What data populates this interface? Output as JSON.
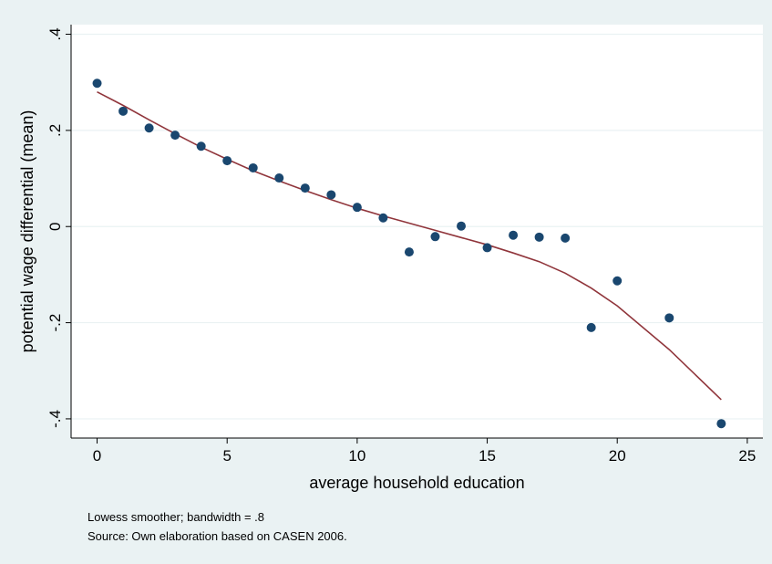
{
  "chart_data": {
    "type": "scatter",
    "xlabel": "average household education",
    "ylabel": "potential wage differential (mean)",
    "xlim": [
      -1,
      25.6
    ],
    "ylim": [
      -0.44,
      0.42
    ],
    "xticks": [
      0,
      5,
      10,
      15,
      20,
      25
    ],
    "xtick_labels": [
      "0",
      "5",
      "10",
      "15",
      "20",
      "25"
    ],
    "yticks": [
      -0.4,
      -0.2,
      0,
      0.2,
      0.4
    ],
    "ytick_labels": [
      "-.4",
      "-.2",
      "0",
      ".2",
      ".4"
    ],
    "grid": true,
    "legend": "none",
    "notes": [
      "Lowess smoother; bandwidth = .8",
      "Source: Own elaboration based on CASEN 2006."
    ],
    "colors": {
      "background": "#eaf2f3",
      "plot_area": "#ffffff",
      "points": "#1a476f",
      "smoother": "#90353b",
      "grid": "#eaf2f3"
    },
    "series": [
      {
        "type": "scatter",
        "x": [
          0,
          1,
          2,
          3,
          4,
          5,
          6,
          7,
          8,
          9,
          10,
          11,
          12,
          13,
          14,
          15,
          16,
          17,
          18,
          19,
          20,
          22,
          24
        ],
        "y": [
          0.298,
          0.24,
          0.205,
          0.19,
          0.167,
          0.137,
          0.122,
          0.101,
          0.08,
          0.066,
          0.04,
          0.018,
          -0.053,
          -0.021,
          0.001,
          -0.044,
          -0.018,
          -0.022,
          -0.024,
          -0.21,
          -0.113,
          -0.19,
          -0.41
        ]
      },
      {
        "type": "line",
        "x": [
          0,
          1,
          2,
          3,
          4,
          5,
          6,
          7,
          8,
          9,
          10,
          11,
          12,
          13,
          14,
          15,
          16,
          17,
          18,
          19,
          20,
          22,
          24
        ],
        "y": [
          0.28,
          0.252,
          0.222,
          0.193,
          0.165,
          0.14,
          0.116,
          0.095,
          0.075,
          0.056,
          0.038,
          0.022,
          0.007,
          -0.008,
          -0.023,
          -0.038,
          -0.055,
          -0.073,
          -0.097,
          -0.128,
          -0.165,
          -0.256,
          -0.36
        ]
      }
    ]
  }
}
